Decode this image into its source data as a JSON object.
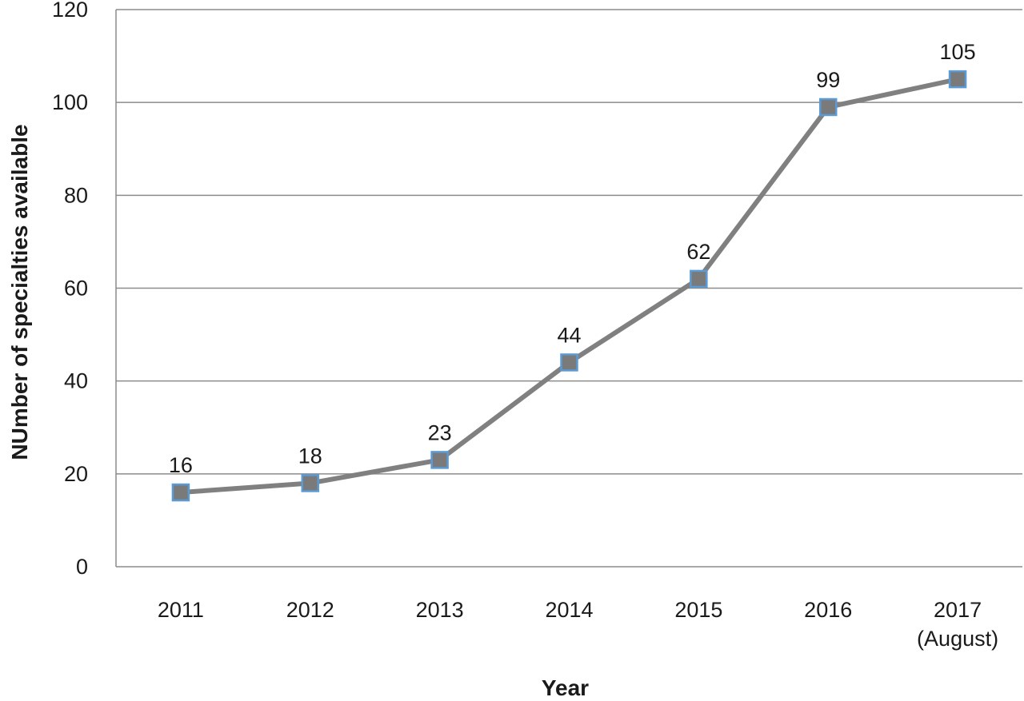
{
  "chart_data": {
    "type": "line",
    "title": "",
    "xlabel": "Year",
    "ylabel": "NUmber of specialties available",
    "categories": [
      [
        "2011"
      ],
      [
        "2012"
      ],
      [
        "2013"
      ],
      [
        "2014"
      ],
      [
        "2015"
      ],
      [
        "2016"
      ],
      [
        "2017",
        "(August)"
      ]
    ],
    "series": [
      {
        "values": [
          16,
          18,
          23,
          44,
          62,
          99,
          105
        ]
      }
    ],
    "data_labels": [
      "16",
      "18",
      "23",
      "44",
      "62",
      "99",
      "105"
    ],
    "ylim": [
      0,
      120
    ],
    "yticks": [
      0,
      20,
      40,
      60,
      80,
      100,
      120
    ],
    "grid": true,
    "legend": "none",
    "colors": {
      "line": "#808080",
      "marker_fill": "#7a7a7a",
      "marker_stroke": "#5b9bd5",
      "grid": "#8c8c8c"
    }
  }
}
